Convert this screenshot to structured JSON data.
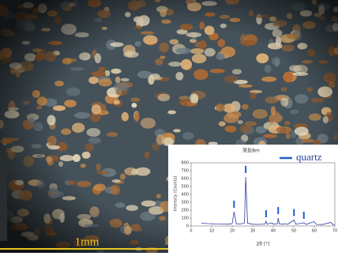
{
  "scale_bar": {
    "label": "1mm"
  },
  "chart_data": {
    "type": "line",
    "title": "某处8m",
    "x_label": "2θ (°)",
    "y_label": "Intensity (Counts)",
    "x": [
      5,
      8,
      10,
      12,
      15,
      18,
      20,
      20.9,
      22,
      24,
      26,
      26.6,
      27.5,
      30,
      33,
      36,
      36.5,
      37,
      39.5,
      40,
      42,
      42.4,
      43,
      45,
      45.8,
      47,
      50.1,
      51,
      54.9,
      56,
      59.9,
      61,
      64,
      68.1,
      69,
      70
    ],
    "series": [
      {
        "color": "#2b3aa0",
        "values": [
          35,
          30,
          28,
          25,
          24,
          22,
          30,
          180,
          28,
          25,
          40,
          620,
          35,
          22,
          20,
          25,
          60,
          24,
          40,
          22,
          28,
          100,
          25,
          22,
          30,
          20,
          75,
          22,
          40,
          20,
          55,
          20,
          18,
          45,
          18,
          18
        ]
      }
    ],
    "reference": {
      "name": "quartz",
      "color": "#1f5fc8",
      "x": [
        20.9,
        26.6,
        36.5,
        42.4,
        50.1,
        54.9
      ]
    },
    "xlim": [
      0,
      70
    ],
    "ylim": [
      0,
      800
    ],
    "xticks": [
      0,
      10,
      20,
      30,
      40,
      50,
      60,
      70
    ],
    "yticks": [
      0,
      100,
      200,
      300,
      400,
      500,
      600,
      700,
      800
    ]
  }
}
